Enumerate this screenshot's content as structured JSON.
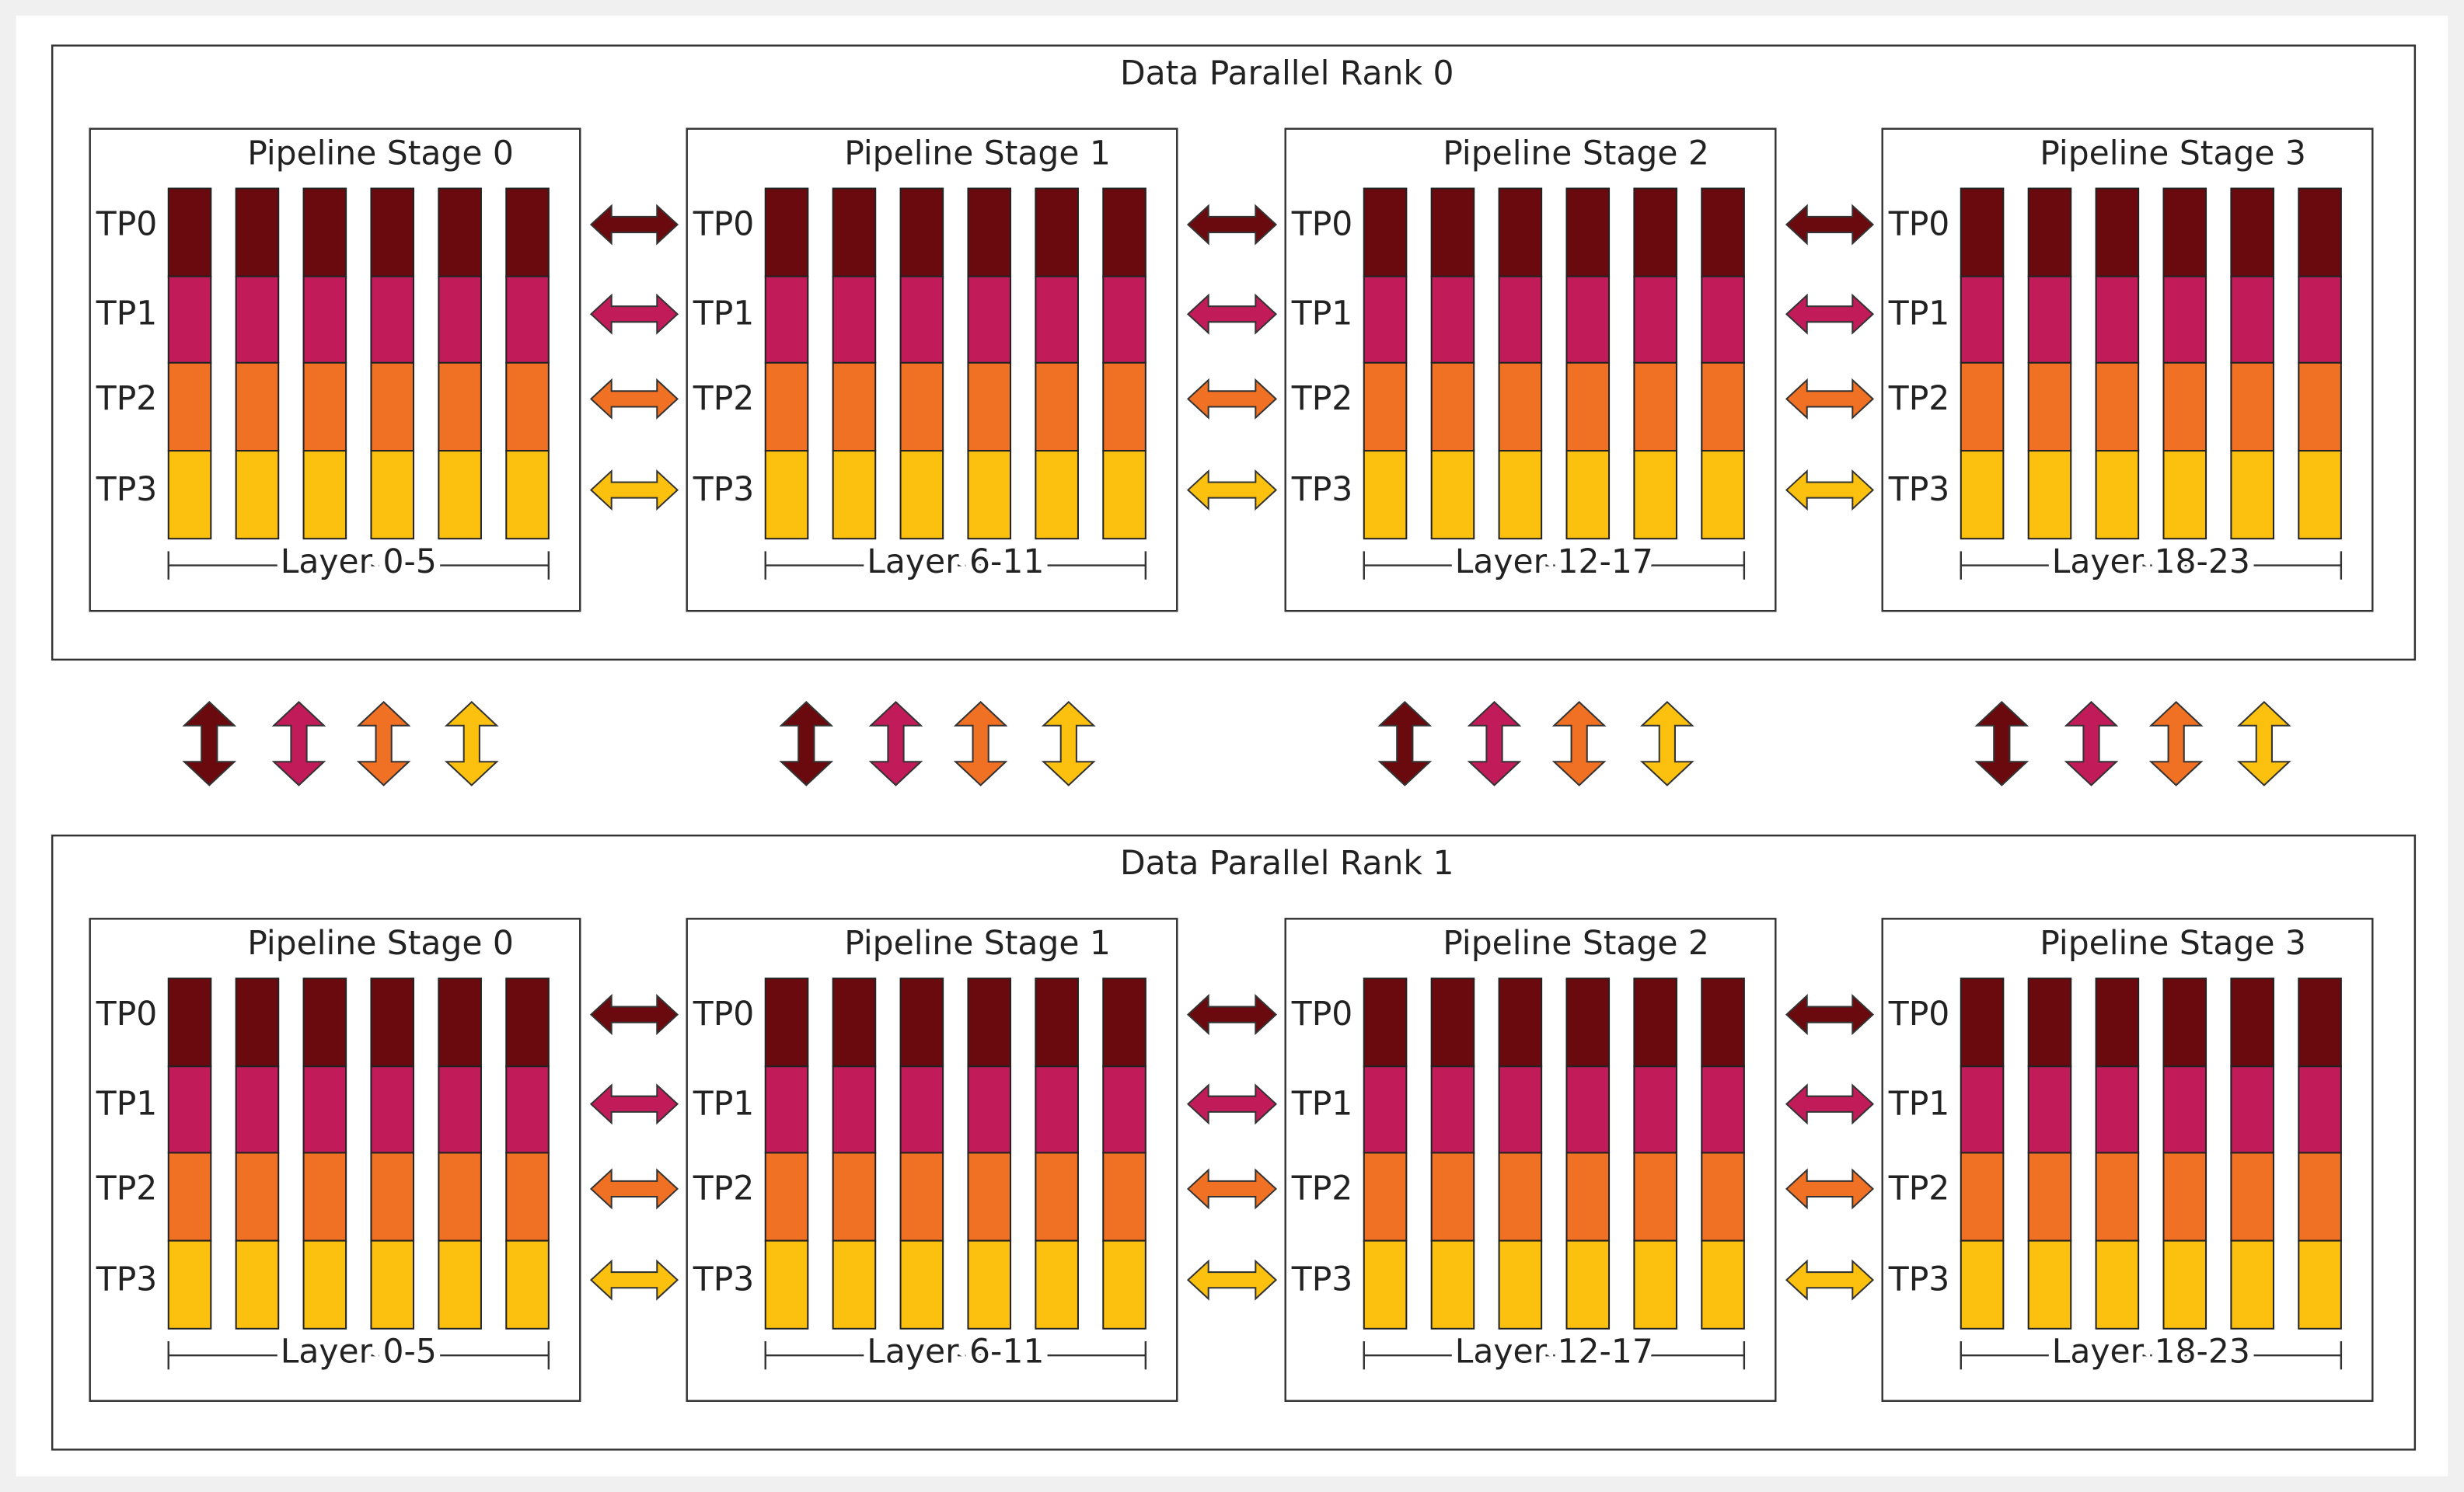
{
  "ranks": [
    {
      "title": "Data Parallel Rank 0",
      "stages": [
        {
          "title": "Pipeline Stage 0",
          "tp_labels": [
            "TP0",
            "TP1",
            "TP2",
            "TP3"
          ],
          "layers": "Layer 0-5"
        },
        {
          "title": "Pipeline Stage 1",
          "tp_labels": [
            "TP0",
            "TP1",
            "TP2",
            "TP3"
          ],
          "layers": "Layer 6-11"
        },
        {
          "title": "Pipeline Stage 2",
          "tp_labels": [
            "TP0",
            "TP1",
            "TP2",
            "TP3"
          ],
          "layers": "Layer 12-17"
        },
        {
          "title": "Pipeline Stage 3",
          "tp_labels": [
            "TP0",
            "TP1",
            "TP2",
            "TP3"
          ],
          "layers": "Layer 18-23"
        }
      ]
    },
    {
      "title": "Data Parallel Rank 1",
      "stages": [
        {
          "title": "Pipeline Stage 0",
          "tp_labels": [
            "TP0",
            "TP1",
            "TP2",
            "TP3"
          ],
          "layers": "Layer 0-5"
        },
        {
          "title": "Pipeline Stage 1",
          "tp_labels": [
            "TP0",
            "TP1",
            "TP2",
            "TP3"
          ],
          "layers": "Layer 6-11"
        },
        {
          "title": "Pipeline Stage 2",
          "tp_labels": [
            "TP0",
            "TP1",
            "TP2",
            "TP3"
          ],
          "layers": "Layer 12-17"
        },
        {
          "title": "Pipeline Stage 3",
          "tp_labels": [
            "TP0",
            "TP1",
            "TP2",
            "TP3"
          ],
          "layers": "Layer 18-23"
        }
      ]
    }
  ]
}
